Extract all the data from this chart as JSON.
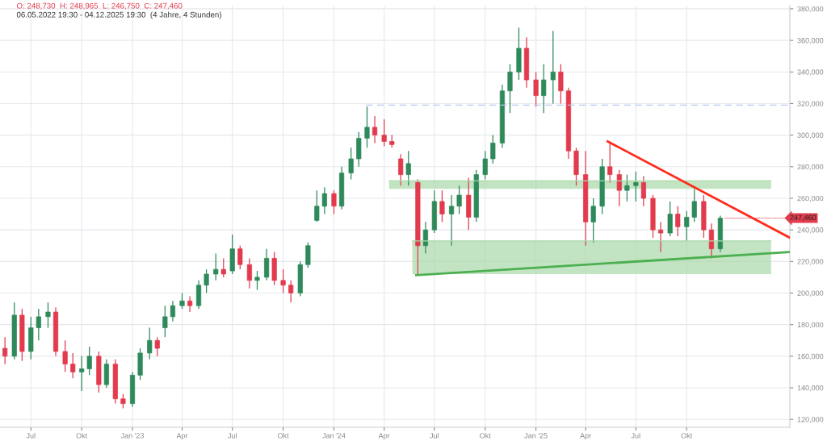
{
  "chart_data": {
    "type": "candlestick",
    "annotations": [
      "O: 248,730  H: 248,965  L: 246,750  C: 247,460",
      "06.05.2022 19:30 - 04.12.2025 19:30  (4 Jahre, 4 Stunden)",
      {
        "text": "247,460",
        "x": "2025-12-04",
        "y": 247460
      }
    ],
    "x": [
      "2022-05-15",
      "2022-06-01",
      "2022-06-15",
      "2022-07-01",
      "2022-07-15",
      "2022-08-01",
      "2022-08-15",
      "2022-09-01",
      "2022-09-15",
      "2022-10-01",
      "2022-10-15",
      "2022-11-01",
      "2022-11-15",
      "2022-12-01",
      "2022-12-15",
      "2023-01-01",
      "2023-01-15",
      "2023-02-01",
      "2023-02-15",
      "2023-03-01",
      "2023-03-15",
      "2023-04-01",
      "2023-04-15",
      "2023-05-01",
      "2023-05-15",
      "2023-06-01",
      "2023-06-15",
      "2023-07-01",
      "2023-07-15",
      "2023-08-01",
      "2023-08-15",
      "2023-09-01",
      "2023-09-15",
      "2023-10-01",
      "2023-10-15",
      "2023-11-01",
      "2023-11-15",
      "2023-12-01",
      "2023-12-15",
      "2024-01-01",
      "2024-01-15",
      "2024-02-01",
      "2024-02-15",
      "2024-03-01",
      "2024-03-15",
      "2024-04-01",
      "2024-04-15",
      "2024-05-01",
      "2024-05-15",
      "2024-06-01",
      "2024-06-15",
      "2024-07-01",
      "2024-07-15",
      "2024-08-01",
      "2024-08-15",
      "2024-09-01",
      "2024-09-15",
      "2024-10-01",
      "2024-10-15",
      "2024-11-01",
      "2024-11-15",
      "2024-12-01",
      "2024-12-15",
      "2025-01-01",
      "2025-01-15",
      "2025-02-01",
      "2025-02-15",
      "2025-03-01",
      "2025-03-15",
      "2025-04-01",
      "2025-04-15",
      "2025-05-01",
      "2025-05-15",
      "2025-06-01",
      "2025-06-15",
      "2025-07-01",
      "2025-07-15",
      "2025-08-01",
      "2025-08-15",
      "2025-09-01",
      "2025-09-15",
      "2025-10-01",
      "2025-10-15",
      "2025-11-01",
      "2025-11-15",
      "2025-12-01"
    ],
    "ohlc": [
      [
        165000,
        172000,
        155000,
        160000
      ],
      [
        160000,
        194000,
        158000,
        186000
      ],
      [
        186000,
        190000,
        157000,
        163000
      ],
      [
        163000,
        185000,
        158000,
        178000
      ],
      [
        178000,
        190000,
        170000,
        185000
      ],
      [
        185000,
        194000,
        178000,
        188000
      ],
      [
        188000,
        191000,
        160000,
        163000
      ],
      [
        163000,
        170000,
        150000,
        155000
      ],
      [
        155000,
        162000,
        146000,
        150000
      ],
      [
        150000,
        160000,
        138000,
        152000
      ],
      [
        152000,
        166000,
        148000,
        160000
      ],
      [
        160000,
        163000,
        137000,
        142000
      ],
      [
        142000,
        158000,
        140000,
        155000
      ],
      [
        155000,
        158000,
        130000,
        133000
      ],
      [
        133000,
        136000,
        127000,
        130000
      ],
      [
        130000,
        150000,
        128000,
        148000
      ],
      [
        148000,
        165000,
        145000,
        162000
      ],
      [
        162000,
        178000,
        158000,
        170000
      ],
      [
        170000,
        172000,
        160000,
        165000
      ],
      [
        178000,
        192000,
        172000,
        185000
      ],
      [
        185000,
        195000,
        182000,
        192000
      ],
      [
        192000,
        200000,
        190000,
        195000
      ],
      [
        195000,
        198000,
        188000,
        192000
      ],
      [
        192000,
        208000,
        190000,
        205000
      ],
      [
        205000,
        215000,
        200000,
        212000
      ],
      [
        212000,
        225000,
        208000,
        215000
      ],
      [
        215000,
        222000,
        210000,
        212000
      ],
      [
        214000,
        237000,
        212000,
        228000
      ],
      [
        228000,
        230000,
        215000,
        218000
      ],
      [
        218000,
        222000,
        203000,
        208000
      ],
      [
        208000,
        214000,
        202000,
        210000
      ],
      [
        210000,
        228000,
        208000,
        222000
      ],
      [
        222000,
        226000,
        205000,
        208000
      ],
      [
        208000,
        215000,
        200000,
        205000
      ],
      [
        205000,
        208000,
        194000,
        200000
      ],
      [
        200000,
        220000,
        198000,
        218000
      ],
      [
        218000,
        232000,
        216000,
        230000
      ],
      [
        246000,
        265000,
        245000,
        255000
      ],
      [
        255000,
        267000,
        250000,
        263000
      ],
      [
        263000,
        265000,
        250000,
        255000
      ],
      [
        255000,
        280000,
        253000,
        276000
      ],
      [
        276000,
        292000,
        272000,
        285000
      ],
      [
        285000,
        302000,
        280000,
        298000
      ],
      [
        298000,
        318000,
        292000,
        305000
      ],
      [
        305000,
        312000,
        295000,
        300000
      ],
      [
        300000,
        310000,
        293000,
        296000
      ],
      [
        296000,
        300000,
        292000,
        294000
      ],
      [
        285000,
        288000,
        268000,
        275000
      ],
      [
        275000,
        290000,
        268000,
        282000
      ],
      [
        270000,
        272000,
        212000,
        230000
      ],
      [
        230000,
        245000,
        225000,
        240000
      ],
      [
        240000,
        265000,
        238000,
        258000
      ],
      [
        258000,
        265000,
        245000,
        250000
      ],
      [
        250000,
        262000,
        230000,
        255000
      ],
      [
        255000,
        268000,
        250000,
        262000
      ],
      [
        262000,
        273000,
        240000,
        248000
      ],
      [
        248000,
        278000,
        245000,
        275000
      ],
      [
        275000,
        290000,
        272000,
        285000
      ],
      [
        285000,
        300000,
        282000,
        295000
      ],
      [
        295000,
        332000,
        292000,
        328000
      ],
      [
        328000,
        345000,
        314000,
        340000
      ],
      [
        340000,
        368000,
        335000,
        355000
      ],
      [
        355000,
        362000,
        330000,
        335000
      ],
      [
        335000,
        340000,
        318000,
        325000
      ],
      [
        325000,
        345000,
        314000,
        335000
      ],
      [
        335000,
        366000,
        320000,
        340000
      ],
      [
        340000,
        345000,
        320000,
        328000
      ],
      [
        328000,
        330000,
        285000,
        290000
      ],
      [
        290000,
        292000,
        268000,
        275000
      ],
      [
        275000,
        290000,
        230000,
        245000
      ],
      [
        245000,
        260000,
        232000,
        255000
      ],
      [
        255000,
        285000,
        250000,
        280000
      ],
      [
        280000,
        296000,
        270000,
        275000
      ],
      [
        275000,
        278000,
        255000,
        265000
      ],
      [
        265000,
        275000,
        258000,
        268000
      ],
      [
        268000,
        277000,
        258000,
        270000
      ],
      [
        270000,
        274000,
        255000,
        260000
      ],
      [
        260000,
        262000,
        235000,
        240000
      ],
      [
        240000,
        245000,
        226000,
        238000
      ],
      [
        238000,
        258000,
        236000,
        250000
      ],
      [
        250000,
        255000,
        236000,
        242000
      ],
      [
        242000,
        252000,
        233000,
        248000
      ],
      [
        248000,
        266000,
        245000,
        258000
      ],
      [
        258000,
        262000,
        235000,
        240000
      ],
      [
        240000,
        244000,
        222000,
        228000
      ],
      [
        228000,
        249000,
        226000,
        247460
      ]
    ],
    "colors": [
      "#e23b4e",
      "#2f8a5b",
      "#e23b4e",
      "#2f8a5b",
      "#2f8a5b",
      "#2f8a5b",
      "#e23b4e",
      "#e23b4e",
      "#e23b4e",
      "#2f8a5b",
      "#2f8a5b",
      "#e23b4e",
      "#2f8a5b",
      "#e23b4e",
      "#e23b4e",
      "#2f8a5b",
      "#2f8a5b",
      "#2f8a5b",
      "#e23b4e",
      "#2f8a5b",
      "#2f8a5b",
      "#2f8a5b",
      "#e23b4e",
      "#2f8a5b",
      "#2f8a5b",
      "#2f8a5b",
      "#e23b4e",
      "#2f8a5b",
      "#e23b4e",
      "#e23b4e",
      "#2f8a5b",
      "#2f8a5b",
      "#e23b4e",
      "#e23b4e",
      "#e23b4e",
      "#2f8a5b",
      "#2f8a5b",
      "#2f8a5b",
      "#2f8a5b",
      "#e23b4e",
      "#2f8a5b",
      "#2f8a5b",
      "#2f8a5b",
      "#2f8a5b",
      "#e23b4e",
      "#e23b4e",
      "#e23b4e",
      "#e23b4e",
      "#2f8a5b",
      "#e23b4e",
      "#2f8a5b",
      "#2f8a5b",
      "#e23b4e",
      "#2f8a5b",
      "#2f8a5b",
      "#e23b4e",
      "#2f8a5b",
      "#2f8a5b",
      "#2f8a5b",
      "#2f8a5b",
      "#2f8a5b",
      "#2f8a5b",
      "#e23b4e",
      "#e23b4e",
      "#2f8a5b",
      "#2f8a5b",
      "#e23b4e",
      "#e23b4e",
      "#e23b4e",
      "#e23b4e",
      "#2f8a5b",
      "#2f8a5b",
      "#e23b4e",
      "#e23b4e",
      "#2f8a5b",
      "#2f8a5b",
      "#e23b4e",
      "#e23b4e",
      "#e23b4e",
      "#2f8a5b",
      "#e23b4e",
      "#2f8a5b",
      "#2f8a5b",
      "#e23b4e",
      "#e23b4e",
      "#2f8a5b"
    ],
    "series": [
      {
        "type": "line",
        "color": "#a8d8a8",
        "line_style": "solid",
        "x": [
          "2024-04-10",
          "2026-03-03"
        ],
        "values": [
          271000,
          271000
        ],
        "lower": [
          266000,
          266000
        ],
        "upper": [
          271000,
          271000
        ]
      },
      {
        "type": "line",
        "color": "#a8d8a8",
        "line_style": "solid",
        "x": [
          "2024-05-22",
          "2026-03-03"
        ],
        "values": [
          233000,
          233000
        ],
        "lower": [
          212000,
          212000
        ],
        "upper": [
          233000,
          233000
        ]
      },
      {
        "type": "line",
        "color": "#b8c8f0",
        "line_style": "dashed",
        "x": [
          "2024-02-28",
          "2026-04-06"
        ],
        "values": [
          319000,
          319000
        ]
      },
      {
        "type": "line",
        "color": "#4caf50",
        "line_style": "solid",
        "x": [
          "2024-05-29",
          "2026-04-06"
        ],
        "values": [
          211300,
          226000
        ]
      },
      {
        "type": "line",
        "color": "#ff2a1a",
        "line_style": "solid",
        "x": [
          "2025-05-11",
          "2026-04-06"
        ],
        "values": [
          296000,
          235000
        ]
      }
    ],
    "xlim": [
      "2022-05-06",
      "2026-04-06"
    ],
    "xticks": [
      {
        "value": "2022-07-01",
        "label": "Jul"
      },
      {
        "value": "2022-10-01",
        "label": "Okt"
      },
      {
        "value": "2023-01-01",
        "label": "Jan '23"
      },
      {
        "value": "2023-04-01",
        "label": "Apr"
      },
      {
        "value": "2023-07-01",
        "label": "Jul"
      },
      {
        "value": "2023-10-01",
        "label": "Okt"
      },
      {
        "value": "2024-01-01",
        "label": "Jan '24"
      },
      {
        "value": "2024-04-01",
        "label": "Apr"
      },
      {
        "value": "2024-07-01",
        "label": "Jul"
      },
      {
        "value": "2024-10-01",
        "label": "Okt"
      },
      {
        "value": "2025-01-01",
        "label": "Jan '25"
      },
      {
        "value": "2025-04-01",
        "label": "Apr"
      },
      {
        "value": "2025-07-01",
        "label": "Jul"
      },
      {
        "value": "2025-10-01",
        "label": "Okt"
      }
    ],
    "ylim": [
      115000,
      382000
    ],
    "yticks": [
      {
        "value": 120000,
        "label": "120,000"
      },
      {
        "value": 140000,
        "label": "140,000"
      },
      {
        "value": 160000,
        "label": "160,000"
      },
      {
        "value": 180000,
        "label": "180,000"
      },
      {
        "value": 200000,
        "label": "200,000"
      },
      {
        "value": 220000,
        "label": "220,000"
      },
      {
        "value": 240000,
        "label": "240,000"
      },
      {
        "value": 260000,
        "label": "260,000"
      },
      {
        "value": 280000,
        "label": "280,000"
      },
      {
        "value": 300000,
        "label": "300,000"
      },
      {
        "value": 320000,
        "label": "320,000"
      },
      {
        "value": 340000,
        "label": "340,000"
      },
      {
        "value": 360000,
        "label": "360,000"
      },
      {
        "value": 380000,
        "label": "380,000"
      }
    ],
    "grid": true
  }
}
